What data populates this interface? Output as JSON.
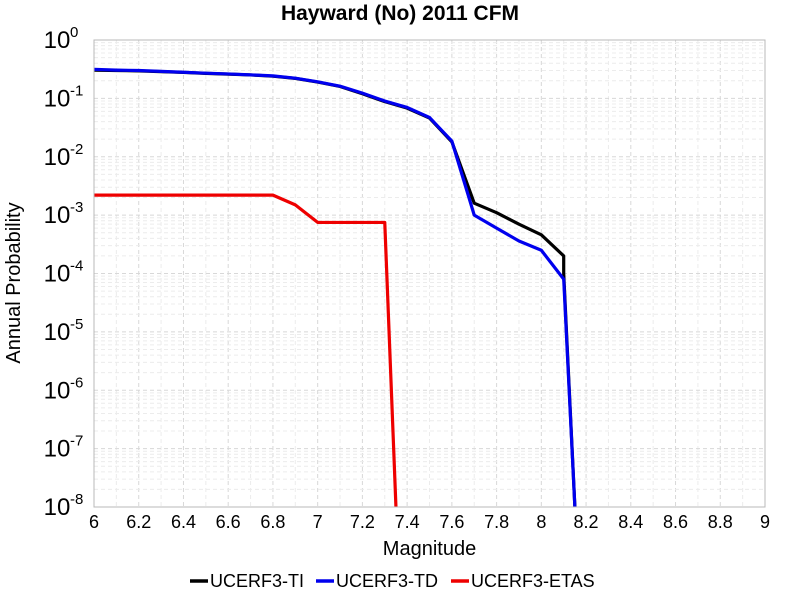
{
  "chart_data": {
    "type": "line",
    "title": "Hayward (No) 2011 CFM",
    "xlabel": "Magnitude",
    "ylabel": "Annual Probability",
    "xlim": [
      6,
      9
    ],
    "ylim": [
      1e-08,
      1
    ],
    "yscale": "log",
    "grid": true,
    "legend_position": "bottom",
    "x_ticks": [
      "6",
      "6.2",
      "6.4",
      "6.6",
      "6.8",
      "7",
      "7.2",
      "7.4",
      "7.6",
      "7.8",
      "8",
      "8.2",
      "8.4",
      "8.6",
      "8.8",
      "9"
    ],
    "y_ticks": [
      {
        "base": "10",
        "exp": "0"
      },
      {
        "base": "10",
        "exp": "-1"
      },
      {
        "base": "10",
        "exp": "-2"
      },
      {
        "base": "10",
        "exp": "-3"
      },
      {
        "base": "10",
        "exp": "-4"
      },
      {
        "base": "10",
        "exp": "-5"
      },
      {
        "base": "10",
        "exp": "-6"
      },
      {
        "base": "10",
        "exp": "-7"
      },
      {
        "base": "10",
        "exp": "-8"
      }
    ],
    "series": [
      {
        "name": "UCERF3-TI",
        "color": "#000000",
        "x": [
          6.0,
          6.1,
          6.2,
          6.3,
          6.4,
          6.5,
          6.6,
          6.7,
          6.8,
          6.9,
          7.0,
          7.1,
          7.2,
          7.3,
          7.4,
          7.5,
          7.6,
          7.7,
          7.8,
          7.9,
          8.0,
          8.1,
          8.1,
          8.15
        ],
        "y": [
          0.305,
          0.3,
          0.296,
          0.287,
          0.278,
          0.268,
          0.26,
          0.252,
          0.24,
          0.22,
          0.19,
          0.16,
          0.12,
          0.088,
          0.068,
          0.046,
          0.018,
          0.0016,
          0.0011,
          0.0007,
          0.00046,
          0.0002,
          0.0001,
          3e-09
        ]
      },
      {
        "name": "UCERF3-TD",
        "color": "#0000ee",
        "x": [
          6.0,
          6.1,
          6.2,
          6.3,
          6.4,
          6.5,
          6.6,
          6.7,
          6.8,
          6.9,
          7.0,
          7.1,
          7.2,
          7.3,
          7.4,
          7.5,
          7.6,
          7.7,
          7.8,
          7.9,
          8.0,
          8.1,
          8.15
        ],
        "y": [
          0.315,
          0.305,
          0.3,
          0.29,
          0.28,
          0.27,
          0.262,
          0.253,
          0.243,
          0.222,
          0.192,
          0.162,
          0.123,
          0.09,
          0.07,
          0.047,
          0.0185,
          0.001,
          0.0006,
          0.00036,
          0.00025,
          8e-05,
          3e-09
        ]
      },
      {
        "name": "UCERF3-ETAS",
        "color": "#ee0000",
        "x": [
          6.0,
          6.8,
          6.9,
          7.0,
          7.3,
          7.35
        ],
        "y": [
          0.0022,
          0.0022,
          0.0015,
          0.00075,
          0.00075,
          3e-09
        ]
      }
    ]
  }
}
